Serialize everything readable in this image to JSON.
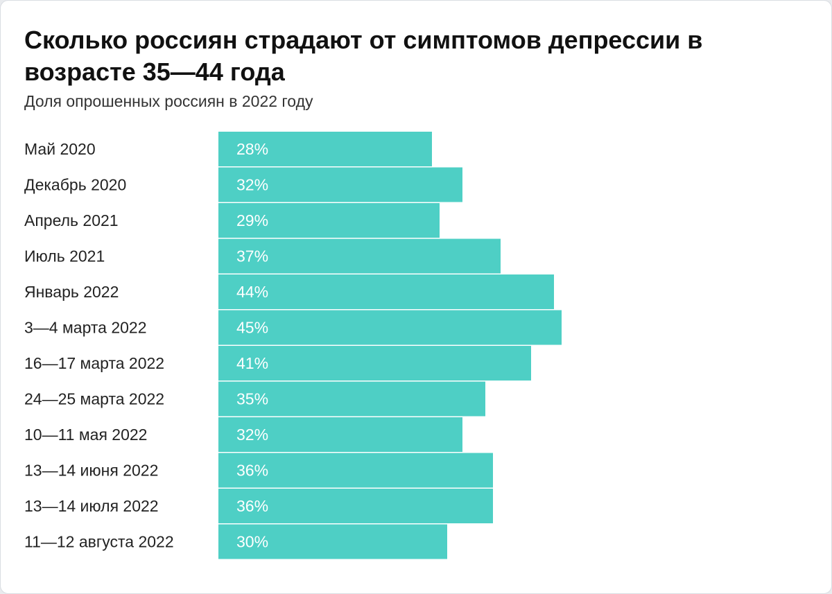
{
  "header": {
    "title": "Сколько россиян страдают от симптомов депрессии в возрасте 35—44 года",
    "subtitle": "Доля опрошенных россиян в 2022 году"
  },
  "chart_data": {
    "type": "bar",
    "orientation": "horizontal",
    "title": "Сколько россиян страдают от симптомов депрессии в возрасте 35—44 года",
    "subtitle": "Доля опрошенных россиян в 2022 году",
    "xlabel": "",
    "ylabel": "",
    "unit": "%",
    "categories": [
      "Май 2020",
      "Декабрь 2020",
      "Апрель 2021",
      "Июль 2021",
      "Январь 2022",
      "3—4 марта 2022",
      "16—17 марта 2022",
      "24—25 марта 2022",
      "10—11 мая 2022",
      "13—14 июня 2022",
      "13—14 июля 2022",
      "11—12 августа 2022"
    ],
    "values": [
      28,
      32,
      29,
      37,
      44,
      45,
      41,
      35,
      32,
      36,
      36,
      30
    ],
    "value_labels": [
      "28%",
      "32%",
      "29%",
      "37%",
      "44%",
      "45%",
      "41%",
      "35%",
      "32%",
      "36%",
      "36%",
      "30%"
    ],
    "bar_color": "#4ecfc5",
    "grid": false,
    "legend": "none"
  }
}
